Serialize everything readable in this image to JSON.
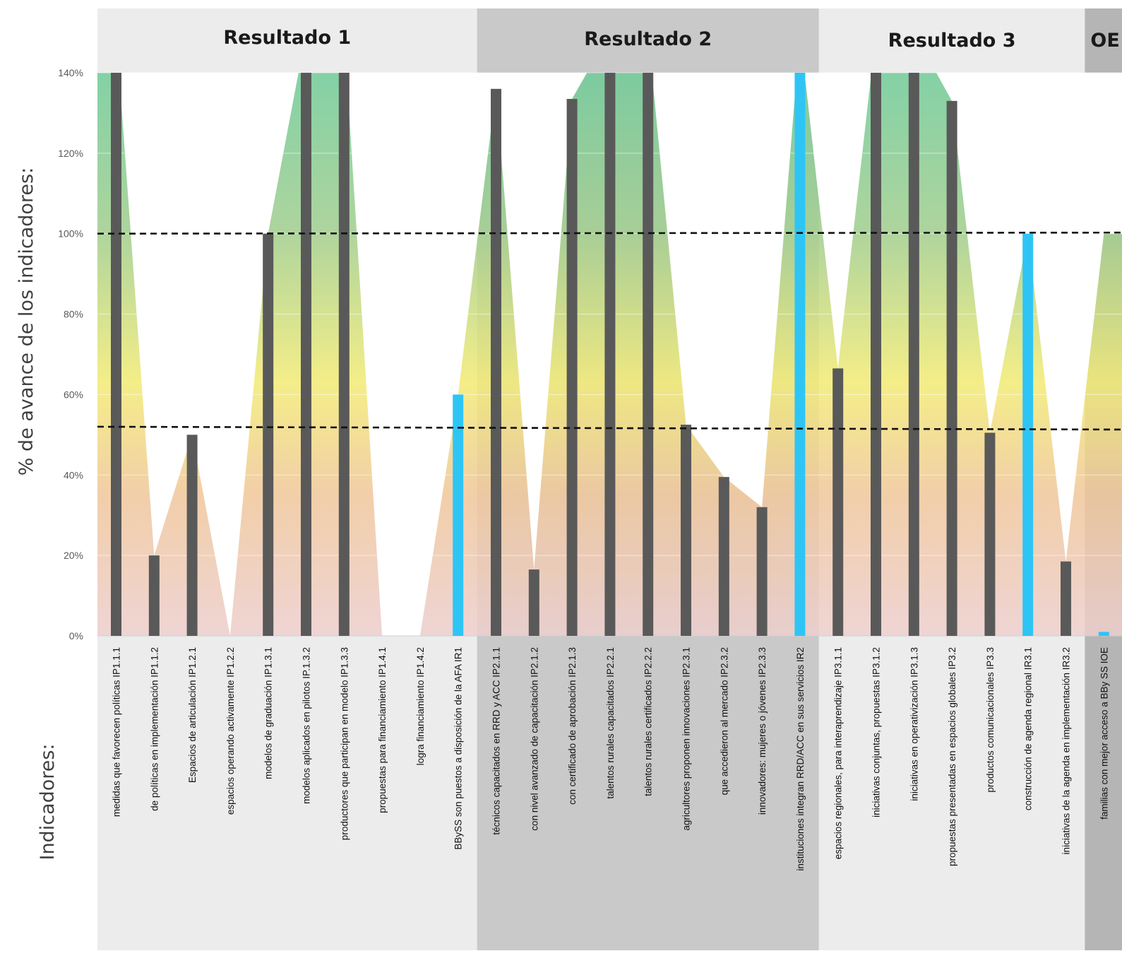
{
  "chart_data": {
    "type": "bar",
    "ylabel": "% de avance de los indicadores:",
    "xlabel": "Indicadores:",
    "ylim": [
      0,
      140
    ],
    "yticks": [
      "0%",
      "20%",
      "40%",
      "60%",
      "80%",
      "100%",
      "120%",
      "140%"
    ],
    "groups": [
      {
        "title": "Resultado 1",
        "count": 10
      },
      {
        "title": "Resultado 2",
        "count": 9
      },
      {
        "title": "Resultado 3",
        "count": 7
      },
      {
        "title": "OE",
        "count": 1
      }
    ],
    "categories": [
      "medidas que favorecen políticas IP1.1.1",
      "de políticas en implementación IP1.1.2",
      "Espacios de articulación IP1.2.1",
      "espacios operando activamente IP1.2.2",
      "modelos de graduación IP1.3.1",
      "modelos aplicados en pilotos IP.1.3.2",
      "productores que participan en modelo IP1.3.3",
      "propuestas para financiamiento IP1.4.1",
      "logra financiamiento IP1.4.2",
      "BBySS son puestos a disposición de la AFA IR1",
      "técnicos capacitados en RRD y ACC IP2.1.1",
      "con nivel avanzado de capacitación IP2.1.2",
      "con certificado de aprobación IP2.1.3",
      "talentos rurales capacitados IP2.2.1",
      "talentos rurales certificados IP2.2.2",
      "agricultores proponen innovaciones IP2.3.1",
      "que accedieron al mercado IP2.3.2",
      "innovadores: mujeres o jóvenes IP2.3.3",
      "instituciones integran RRD/ACC en sus servicios IR2",
      "espacios regionales, para interaprendizaje IP3.1.1",
      "iniciativas conjuntas, propuestas IP3.1.2",
      "iniciativas en operativización IP3.1.3",
      "propuestas presentadas en espacios globales IP3.2",
      "productos comunicacionales IP3.3",
      "construcción de agenda regional IR3.1",
      "iniciativas de la agenda en implementación IR3.2",
      "familias con mejor acceso a BBy SS IOE"
    ],
    "values": [
      140,
      20,
      50,
      0,
      100,
      140,
      140,
      0,
      0,
      60,
      136,
      16.5,
      133.5,
      140,
      140,
      52.5,
      39.5,
      32,
      140,
      66.5,
      140,
      140,
      133,
      50.5,
      100,
      18.5,
      1
    ],
    "line_values": [
      150,
      20,
      50,
      0,
      100,
      150,
      150,
      0,
      0,
      60,
      136,
      16.5,
      133.5,
      150,
      150,
      52.5,
      39.5,
      32,
      150,
      66.5,
      150,
      150,
      133,
      50.5,
      100,
      18.5,
      100
    ],
    "bar_colors": [
      "#595959",
      "#595959",
      "#595959",
      "#595959",
      "#595959",
      "#595959",
      "#595959",
      "#595959",
      "#595959",
      "#2ec5f5",
      "#595959",
      "#595959",
      "#595959",
      "#595959",
      "#595959",
      "#595959",
      "#595959",
      "#595959",
      "#2ec5f5",
      "#595959",
      "#595959",
      "#595959",
      "#595959",
      "#595959",
      "#2ec5f5",
      "#595959",
      "#2ec5f5"
    ],
    "reference_lines": [
      100,
      52
    ],
    "background_bands": [
      "#ececec",
      "#c9c9c9",
      "#ececec",
      "#b5b5b5"
    ],
    "gradient_colors": {
      "top": "#6ccb96",
      "upper": "#a0cf8c",
      "middle": "#f6ee72",
      "lower": "#f3c89a",
      "bottom": "#efcfcf"
    },
    "grid": true,
    "legend": "none"
  }
}
